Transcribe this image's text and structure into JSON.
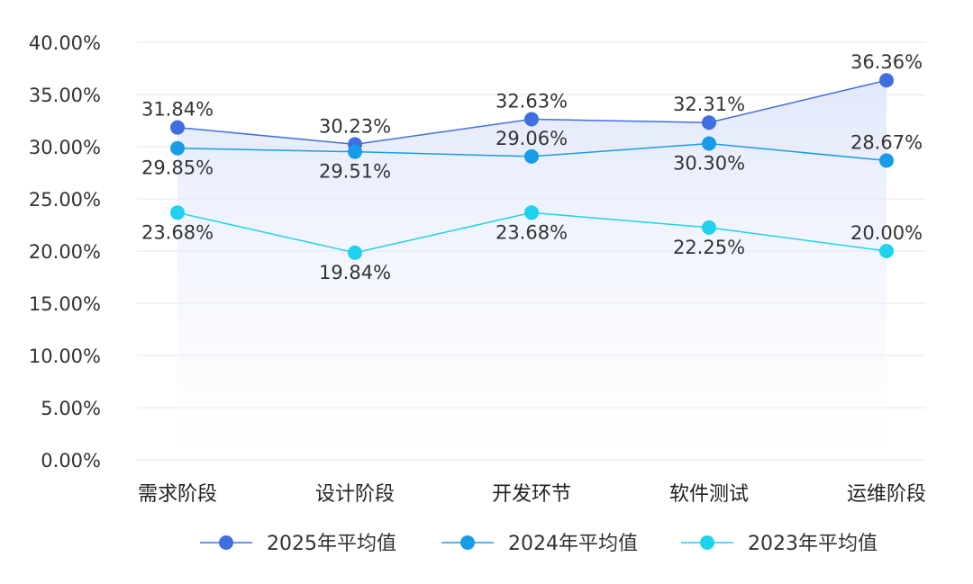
{
  "chart_data": {
    "type": "line",
    "categories": [
      "需求阶段",
      "设计阶段",
      "开发环节",
      "软件测试",
      "运维阶段"
    ],
    "series": [
      {
        "name": "2025年平均值",
        "values": [
          31.84,
          30.23,
          32.63,
          32.31,
          36.36
        ],
        "color": "#3f6fe0",
        "labels": [
          "31.84%",
          "30.23%",
          "32.63%",
          "32.31%",
          "36.36%"
        ],
        "label_pos": [
          "above",
          "above",
          "above",
          "above",
          "above"
        ]
      },
      {
        "name": "2024年平均值",
        "values": [
          29.85,
          29.51,
          29.06,
          30.3,
          28.67
        ],
        "color": "#1a9be8",
        "labels": [
          "29.85%",
          "29.51%",
          "29.06%",
          "30.30%",
          "28.67%"
        ],
        "label_pos": [
          "below",
          "below",
          "above",
          "below",
          "above"
        ]
      },
      {
        "name": "2023年平均值",
        "values": [
          23.68,
          19.84,
          23.68,
          22.25,
          20.0
        ],
        "color": "#1fd2ee",
        "labels": [
          "23.68%",
          "19.84%",
          "23.68%",
          "22.25%",
          "20.00%"
        ],
        "label_pos": [
          "below",
          "below",
          "below",
          "below",
          "above"
        ]
      }
    ],
    "ylim": [
      0,
      40
    ],
    "yticks": [
      "0.00%",
      "5.00%",
      "10.00%",
      "15.00%",
      "20.00%",
      "25.00%",
      "30.00%",
      "35.00%",
      "40.00%"
    ],
    "grid": true,
    "legend": "bottom",
    "xlabel": "",
    "ylabel": ""
  }
}
